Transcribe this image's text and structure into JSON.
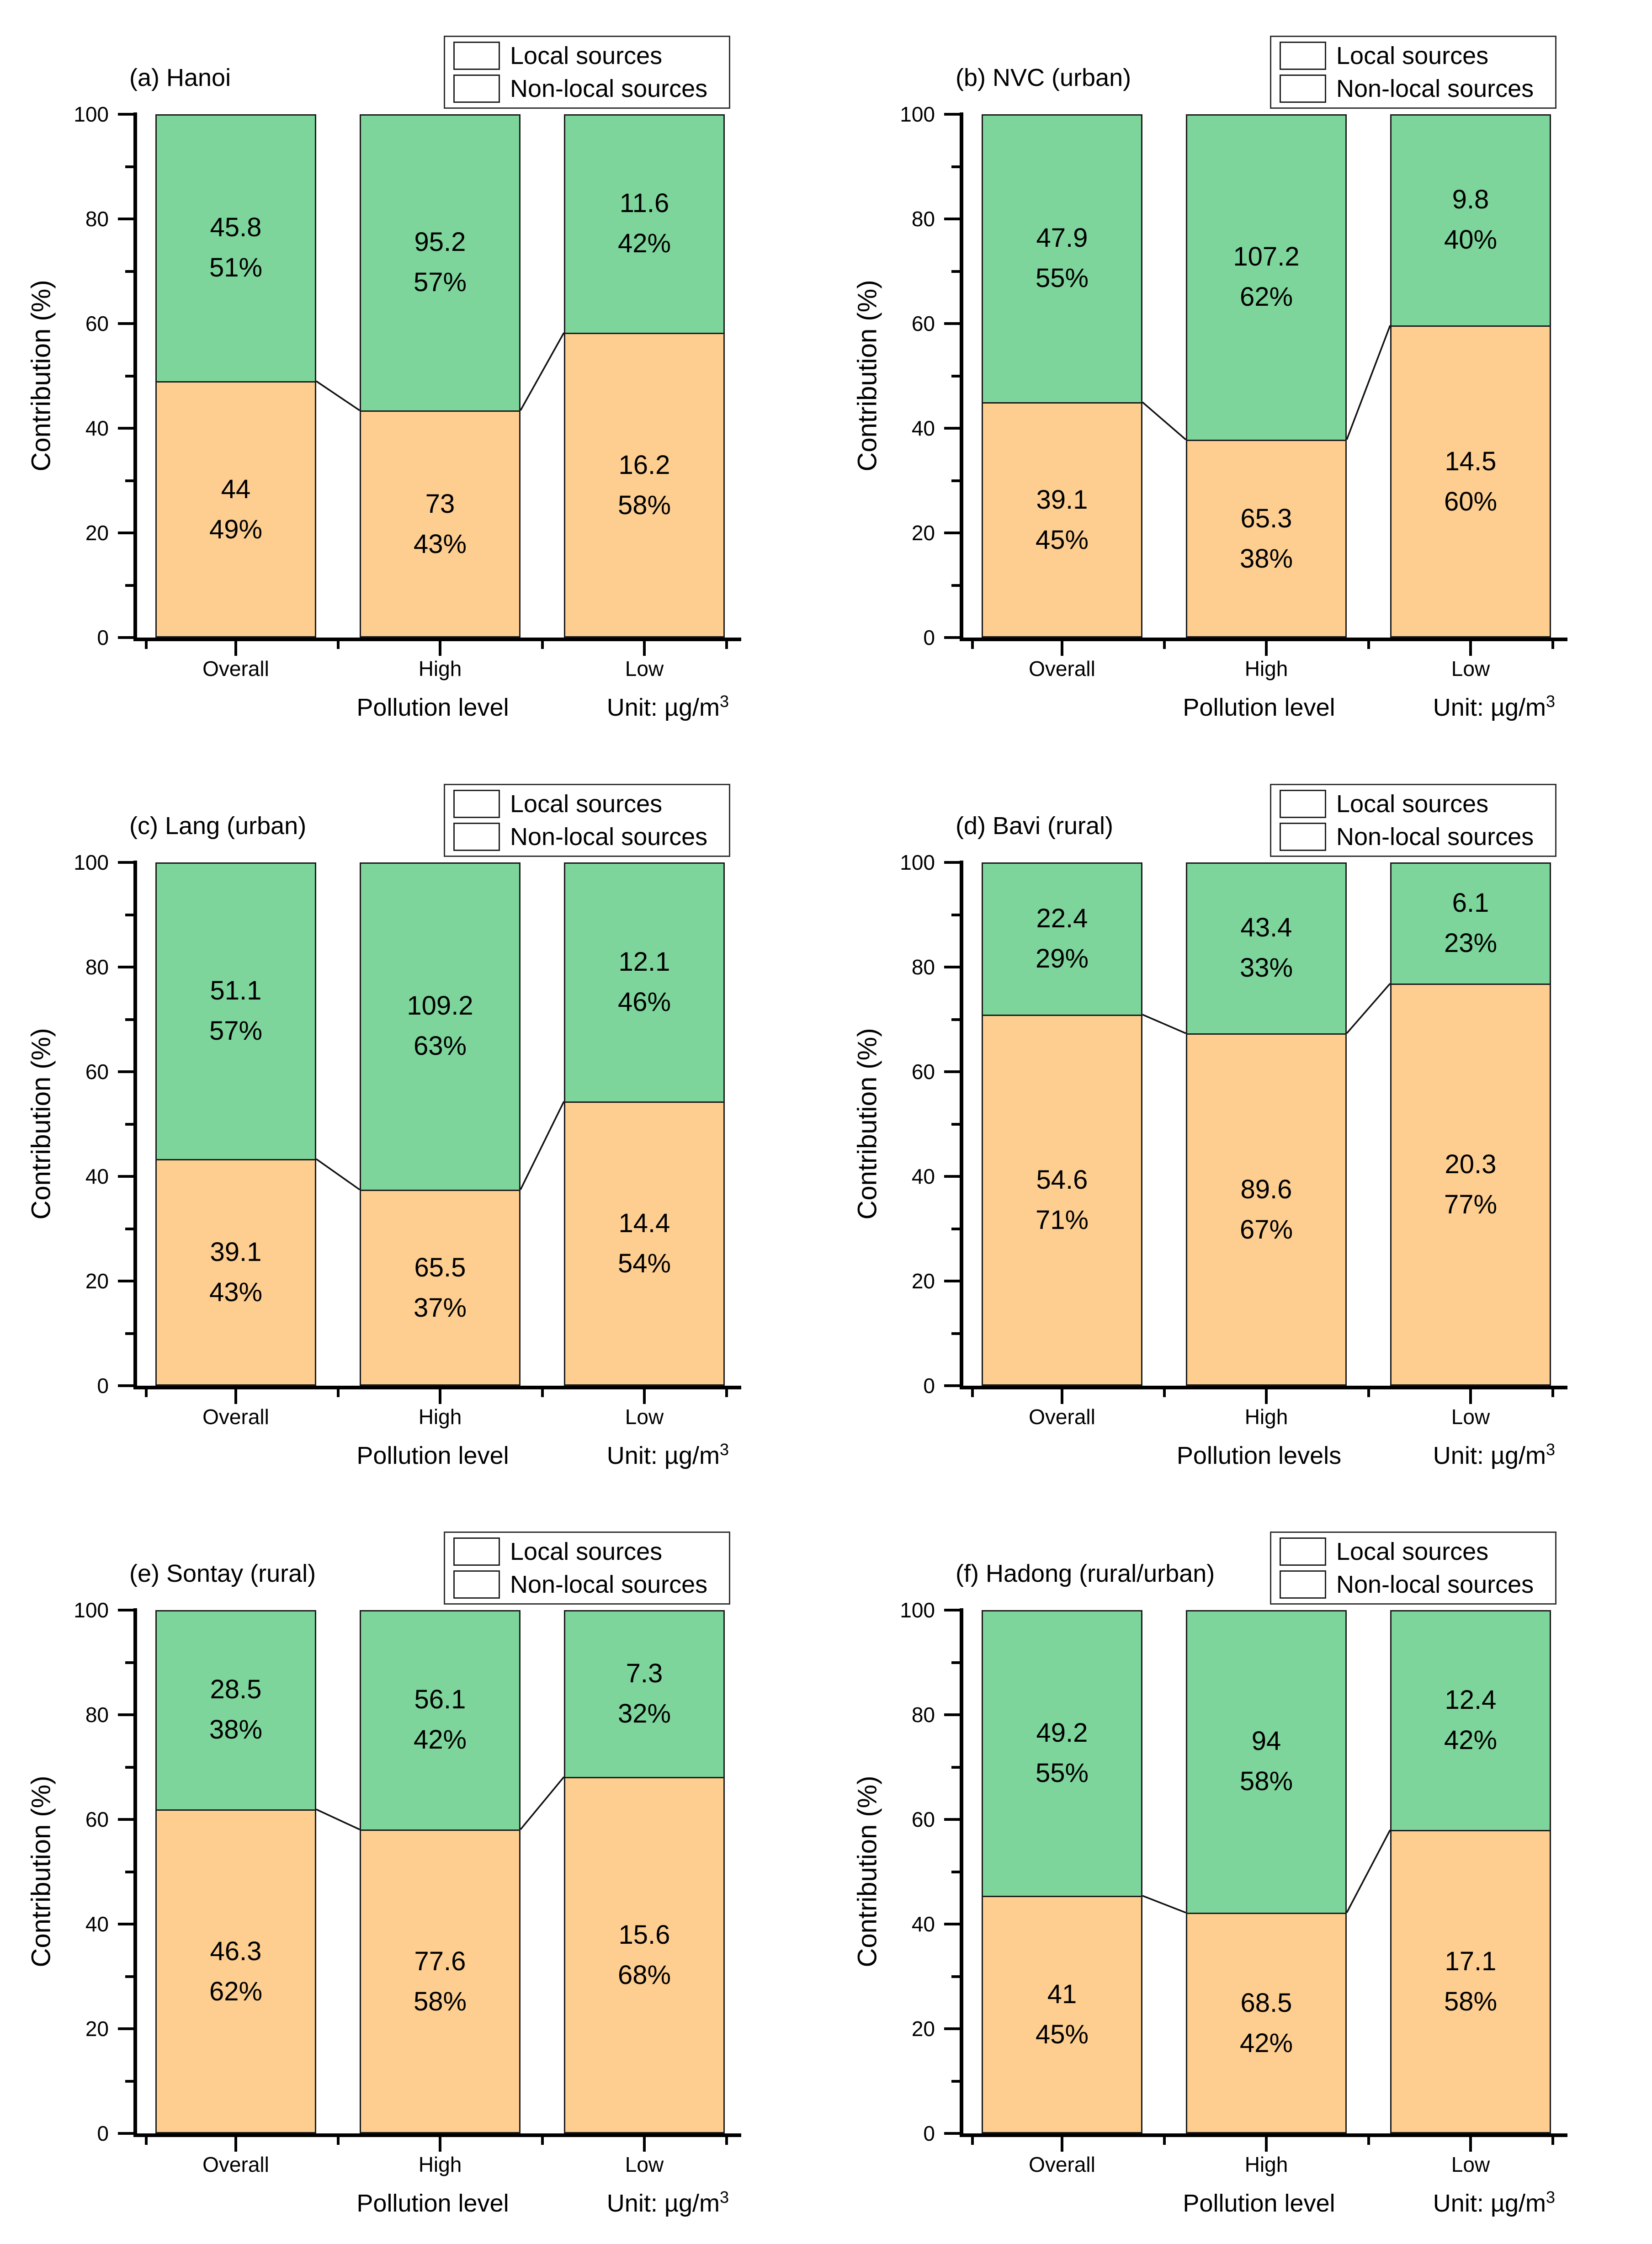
{
  "figure": {
    "background": "#ffffff"
  },
  "chart_data": {
    "type": "bar",
    "stacked": true,
    "orientation": "vertical",
    "ylabel": "Contribution (%)",
    "ylim": [
      0,
      100
    ],
    "yticks": [
      0,
      20,
      40,
      60,
      80,
      100
    ],
    "yticks_minor": [
      10,
      30,
      50,
      70,
      90
    ],
    "categories": [
      "Overall",
      "High",
      "Low"
    ],
    "unit_prefix": "Unit: µg/m",
    "unit_sup": "3",
    "legend": {
      "position": "top-right",
      "local_label": "Local sources",
      "nonlocal_label": "Non-local sources"
    },
    "colors": {
      "local": "#7DD59B",
      "nonlocal": "#FDCE90",
      "outline": "#1a1a1a",
      "axis": "#000000"
    },
    "panels": [
      {
        "title": "(a) Hanoi",
        "xlabel": "Pollution level",
        "series": {
          "local": {
            "name": "Local sources",
            "values": [
              45.8,
              95.2,
              11.6
            ],
            "pct": [
              51,
              57,
              42
            ]
          },
          "nonlocal": {
            "name": "Non-local sources",
            "values": [
              44,
              73,
              16.2
            ],
            "pct": [
              49,
              43,
              58
            ]
          }
        }
      },
      {
        "title": "(b) NVC (urban)",
        "xlabel": "Pollution level",
        "series": {
          "local": {
            "name": "Local sources",
            "values": [
              47.9,
              107.2,
              9.8
            ],
            "pct": [
              55,
              62,
              40
            ]
          },
          "nonlocal": {
            "name": "Non-local sources",
            "values": [
              39.1,
              65.3,
              14.5
            ],
            "pct": [
              45,
              38,
              60
            ]
          }
        }
      },
      {
        "title": "(c) Lang (urban)",
        "xlabel": "Pollution level",
        "series": {
          "local": {
            "name": "Local sources",
            "values": [
              51.1,
              109.2,
              12.1
            ],
            "pct": [
              57,
              63,
              46
            ]
          },
          "nonlocal": {
            "name": "Non-local sources",
            "values": [
              39.1,
              65.5,
              14.4
            ],
            "pct": [
              43,
              37,
              54
            ]
          }
        }
      },
      {
        "title": "(d) Bavi (rural)",
        "xlabel": "Pollution levels",
        "series": {
          "local": {
            "name": "Local sources",
            "values": [
              22.4,
              43.4,
              6.1
            ],
            "pct": [
              29,
              33,
              23
            ]
          },
          "nonlocal": {
            "name": "Non-local sources",
            "values": [
              54.6,
              89.6,
              20.3
            ],
            "pct": [
              71,
              67,
              77
            ]
          }
        }
      },
      {
        "title": "(e) Sontay (rural)",
        "xlabel": "Pollution level",
        "series": {
          "local": {
            "name": "Local sources",
            "values": [
              28.5,
              56.1,
              7.3
            ],
            "pct": [
              38,
              42,
              32
            ]
          },
          "nonlocal": {
            "name": "Non-local sources",
            "values": [
              46.3,
              77.6,
              15.6
            ],
            "pct": [
              62,
              58,
              68
            ]
          }
        }
      },
      {
        "title": "(f) Hadong (rural/urban)",
        "xlabel": "Pollution level",
        "series": {
          "local": {
            "name": "Local sources",
            "values": [
              49.2,
              94,
              12.4
            ],
            "pct": [
              55,
              58,
              42
            ]
          },
          "nonlocal": {
            "name": "Non-local sources",
            "values": [
              41,
              68.5,
              17.1
            ],
            "pct": [
              45,
              42,
              58
            ]
          }
        }
      }
    ]
  }
}
